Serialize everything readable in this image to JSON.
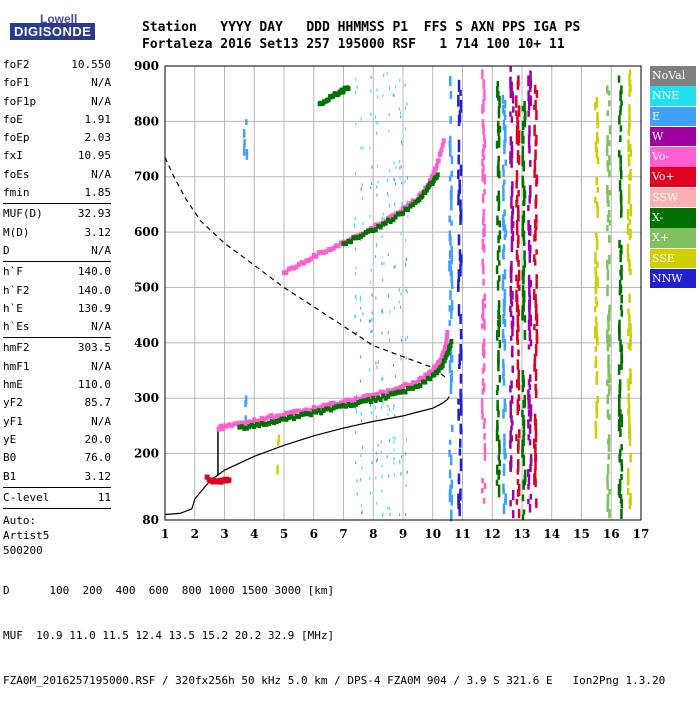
{
  "brand": {
    "line1": "Lowell",
    "line2": "DIGISONDE"
  },
  "header": {
    "row1": "Station   YYYY DAY   DDD HHMMSS P1  FFS S AXN PPS IGA PS",
    "row2": "Fortaleza 2016 Set13 257 195000 RSF   1 714 100 10+ 11"
  },
  "params": [
    {
      "label": "foF2",
      "value": "10.550"
    },
    {
      "label": "foF1",
      "value": "N/A"
    },
    {
      "label": "foF1p",
      "value": "N/A"
    },
    {
      "label": "foE",
      "value": "1.91"
    },
    {
      "label": "foEp",
      "value": "2.03"
    },
    {
      "label": "fxI",
      "value": "10.95"
    },
    {
      "label": "foEs",
      "value": "N/A"
    },
    {
      "label": "fmin",
      "value": "1.85"
    },
    {
      "label": "MUF(D)",
      "value": "32.93"
    },
    {
      "label": "M(D)",
      "value": "3.12"
    },
    {
      "label": "D",
      "value": "N/A"
    },
    {
      "label": "h`F",
      "value": "140.0"
    },
    {
      "label": "h`F2",
      "value": "140.0"
    },
    {
      "label": "h`E",
      "value": "130.9"
    },
    {
      "label": "h`Es",
      "value": "N/A"
    },
    {
      "label": "hmF2",
      "value": "303.5"
    },
    {
      "label": "hmF1",
      "value": "N/A"
    },
    {
      "label": "hmE",
      "value": "110.0"
    },
    {
      "label": "yF2",
      "value": "85.7"
    },
    {
      "label": "yF1",
      "value": "N/A"
    },
    {
      "label": "yE",
      "value": "20.0"
    },
    {
      "label": "B0",
      "value": "76.0"
    },
    {
      "label": "B1",
      "value": "3.12"
    },
    {
      "label": "C-level",
      "value": "11"
    }
  ],
  "auto": {
    "line1": "Auto:",
    "line2": "Artist5",
    "line3": "500200"
  },
  "legend": [
    {
      "label": "NoVal",
      "color": "#808080"
    },
    {
      "label": "NNE",
      "color": "#22e0f0"
    },
    {
      "label": "E",
      "color": "#3fa0ff"
    },
    {
      "label": "W",
      "color": "#a000a0"
    },
    {
      "label": "Vo-",
      "color": "#ff5fd0"
    },
    {
      "label": "Vo+",
      "color": "#e00020"
    },
    {
      "label": "SSW",
      "color": "#ffb0b0"
    },
    {
      "label": "X-",
      "color": "#007000"
    },
    {
      "label": "X+",
      "color": "#80c060"
    },
    {
      "label": "SSE",
      "color": "#d0d000"
    },
    {
      "label": "NNW",
      "color": "#2020d0"
    }
  ],
  "footer": {
    "line1": "D      100  200  400  600  800 1000 1500 3000 [km]",
    "line2": "MUF  10.9 11.0 11.5 12.4 13.5 15.2 20.2 32.9 [MHz]",
    "line3": "FZA0M_2016257195000.RSF / 320fx256h 50 kHz 5.0 km / DPS-4 FZA0M 904 / 3.9 S 321.6 E   Ion2Png 1.3.20"
  },
  "chart_data": {
    "type": "scatter",
    "xlim": [
      1,
      17
    ],
    "ylim": [
      80,
      900
    ],
    "xticks": [
      "1",
      "2",
      "3",
      "4",
      "5",
      "6",
      "7",
      "8",
      "9",
      "10",
      "11",
      "12",
      "13",
      "14",
      "15",
      "16",
      "17"
    ],
    "yticks": [
      "80",
      "200",
      "300",
      "400",
      "500",
      "600",
      "700",
      "800",
      "900"
    ],
    "grid": true,
    "series": [
      {
        "kind": "o_trace_lower",
        "color": "#ff5fd0",
        "x": [
          2.8,
          3.0,
          3.5,
          4.0,
          4.5,
          5.0,
          5.5,
          6.0,
          6.5,
          7.0,
          7.5,
          8.0,
          8.5,
          9.0,
          9.5,
          9.8,
          10.0,
          10.2,
          10.35,
          10.45,
          10.5
        ],
        "y": [
          245,
          248,
          253,
          258,
          264,
          270,
          275,
          280,
          286,
          292,
          298,
          305,
          312,
          320,
          330,
          340,
          350,
          362,
          378,
          395,
          420
        ]
      },
      {
        "kind": "x_trace_lower",
        "color": "#007000",
        "x": [
          3.5,
          4.0,
          4.5,
          5.0,
          5.5,
          6.0,
          6.5,
          7.0,
          7.5,
          8.0,
          8.5,
          9.0,
          9.5,
          10.0,
          10.3,
          10.5,
          10.65
        ],
        "y": [
          245,
          250,
          255,
          260,
          266,
          272,
          278,
          284,
          290,
          296,
          303,
          311,
          322,
          338,
          355,
          380,
          405
        ]
      },
      {
        "kind": "o_trace_upper",
        "color": "#ff5fd0",
        "x": [
          5.0,
          5.5,
          6.0,
          6.5,
          7.0,
          7.5,
          8.0,
          8.5,
          9.0,
          9.5,
          9.8,
          10.0,
          10.2,
          10.4
        ],
        "y": [
          525,
          540,
          555,
          568,
          580,
          593,
          607,
          622,
          640,
          660,
          680,
          700,
          730,
          770
        ]
      },
      {
        "kind": "x_trace_upper",
        "color": "#007000",
        "x": [
          7.0,
          7.5,
          8.0,
          8.5,
          9.0,
          9.5,
          9.8,
          10.0,
          10.2
        ],
        "y": [
          578,
          590,
          603,
          618,
          635,
          656,
          675,
          690,
          705
        ]
      },
      {
        "kind": "x_trace_top",
        "color": "#007000",
        "x": [
          6.2,
          6.5,
          6.8,
          7.0,
          7.2
        ],
        "y": [
          830,
          840,
          850,
          855,
          860
        ]
      },
      {
        "kind": "echo_near_3mhz",
        "color": "#e00020",
        "x": [
          2.4,
          2.6,
          2.8,
          3.0,
          3.2
        ],
        "y": [
          155,
          150,
          148,
          152,
          150
        ]
      }
    ],
    "profile": {
      "kind": "true_height_profile",
      "x": [
        1.0,
        1.5,
        1.9,
        2.0,
        2.5,
        3.0,
        4.0,
        5.0,
        6.0,
        7.0,
        8.0,
        9.0,
        9.5,
        10.0,
        10.3,
        10.5,
        10.55
      ],
      "y": [
        90,
        92,
        100,
        118,
        150,
        170,
        195,
        215,
        232,
        246,
        258,
        268,
        275,
        282,
        290,
        298,
        303
      ]
    },
    "dashed_curve": {
      "kind": "muf_curve",
      "x": [
        1.0,
        1.3,
        1.7,
        2.2,
        3.0,
        4.0,
        5.0,
        6.0,
        7.0,
        8.0,
        9.0,
        10.0,
        10.5
      ],
      "y": [
        735,
        700,
        660,
        620,
        580,
        540,
        500,
        465,
        430,
        395,
        375,
        355,
        335
      ]
    },
    "vertical_streaks": [
      {
        "x": 3.7,
        "ylo": 750,
        "yhi": 820,
        "color": "#3fa0ff"
      },
      {
        "x": 3.7,
        "ylo": 260,
        "yhi": 330,
        "color": "#3fa0ff"
      },
      {
        "x": 4.8,
        "ylo": 180,
        "yhi": 240,
        "color": "#d0d000"
      },
      {
        "x": 10.9,
        "ylo": 110,
        "yhi": 880,
        "color": "#2020d0"
      },
      {
        "x": 10.6,
        "ylo": 90,
        "yhi": 890,
        "color": "#3fa0ff"
      },
      {
        "x": 11.7,
        "ylo": 120,
        "yhi": 900,
        "color": "#ff5fd0"
      },
      {
        "x": 12.2,
        "ylo": 90,
        "yhi": 880,
        "color": "#007000"
      },
      {
        "x": 12.4,
        "ylo": 110,
        "yhi": 860,
        "color": "#3fa0ff"
      },
      {
        "x": 12.65,
        "ylo": 80,
        "yhi": 900,
        "color": "#a000a0"
      },
      {
        "x": 12.85,
        "ylo": 100,
        "yhi": 890,
        "color": "#e00020"
      },
      {
        "x": 13.05,
        "ylo": 90,
        "yhi": 880,
        "color": "#007000"
      },
      {
        "x": 13.25,
        "ylo": 100,
        "yhi": 900,
        "color": "#a000a0"
      },
      {
        "x": 13.45,
        "ylo": 110,
        "yhi": 870,
        "color": "#e00020"
      },
      {
        "x": 15.5,
        "ylo": 250,
        "yhi": 850,
        "color": "#d0d000"
      },
      {
        "x": 15.9,
        "ylo": 100,
        "yhi": 880,
        "color": "#80c060"
      },
      {
        "x": 16.3,
        "ylo": 100,
        "yhi": 890,
        "color": "#007000"
      },
      {
        "x": 16.6,
        "ylo": 120,
        "yhi": 900,
        "color": "#d0d000"
      }
    ]
  }
}
